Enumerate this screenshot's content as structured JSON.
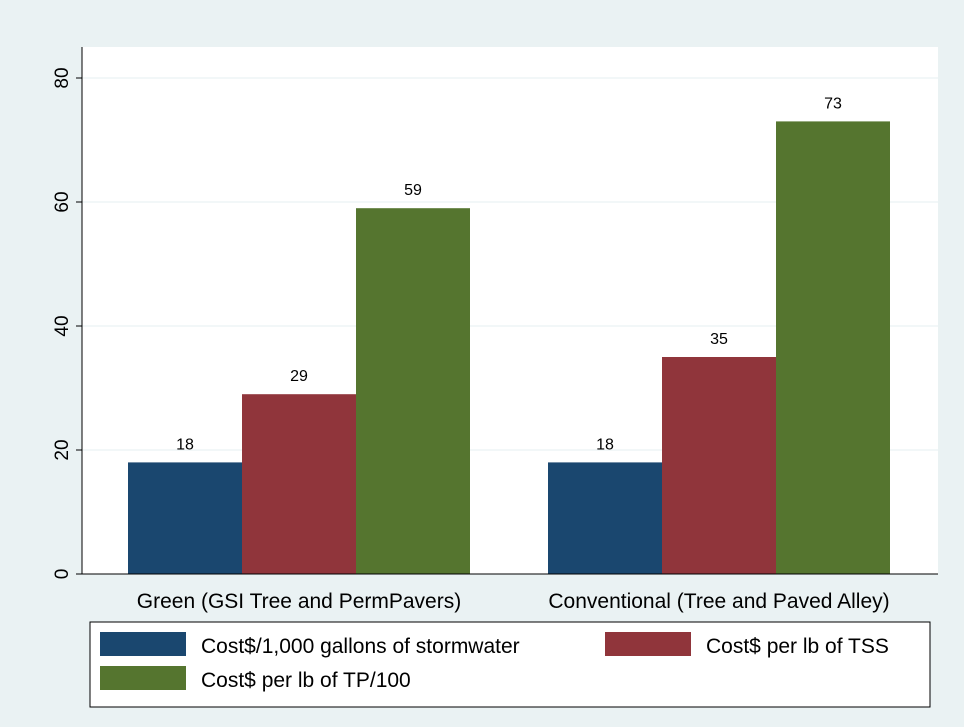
{
  "chart_data": {
    "type": "bar",
    "title": "",
    "xlabel": "",
    "ylabel": "",
    "categories": [
      "Green (GSI Tree and PermPavers)",
      "Conventional (Tree and Paved Alley)"
    ],
    "series": [
      {
        "name": "Cost$/1,000 gallons of stormwater",
        "values": [
          18,
          18
        ],
        "color": "#1a476f"
      },
      {
        "name": "Cost$ per lb of TSS",
        "values": [
          29,
          35
        ],
        "color": "#90353b"
      },
      {
        "name": "Cost$ per lb of TP/100",
        "values": [
          59,
          73
        ],
        "color": "#55752f"
      }
    ],
    "ylim": [
      0,
      80
    ],
    "yticks": [
      0,
      20,
      40,
      60,
      80
    ],
    "grid": true,
    "data_labels": true,
    "legend_position": "bottom"
  },
  "colors": {
    "background": "#eaf2f3",
    "plot_background": "#ffffff",
    "grid": "#eaf2f3"
  }
}
